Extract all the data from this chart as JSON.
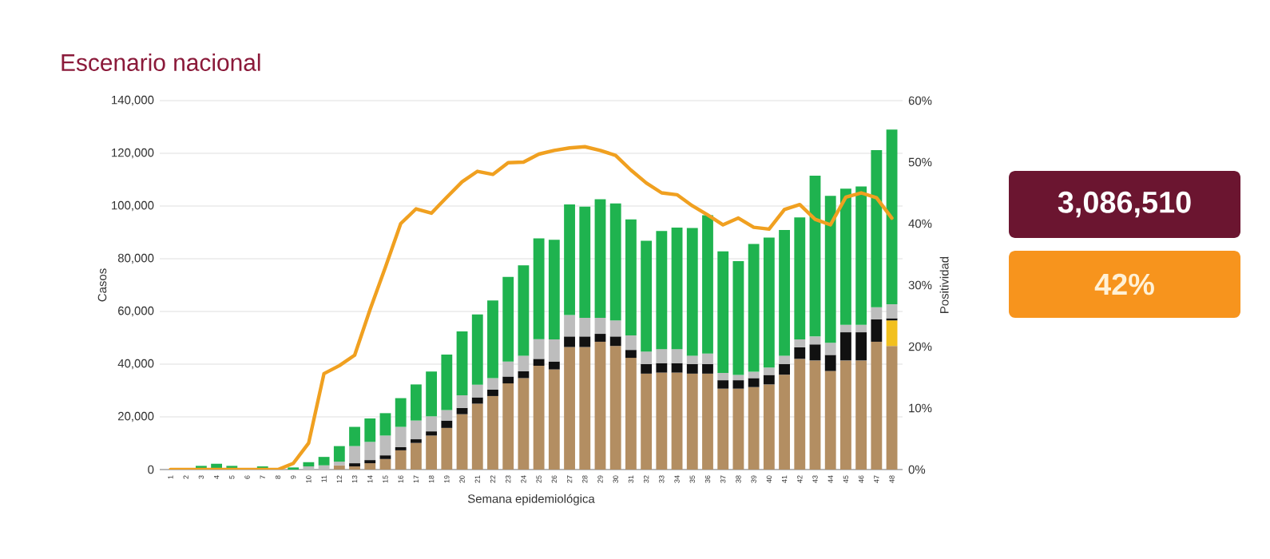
{
  "chart_data": [
    {
      "type": "bar",
      "stacked": true,
      "title": "Escenario nacional",
      "xlabel": "Semana epidemiológica",
      "ylabel": "Casos",
      "y2label": "Positividad",
      "grid": "y",
      "categories": [
        "1",
        "2",
        "3",
        "4",
        "5",
        "6",
        "7",
        "8",
        "9",
        "10",
        "11",
        "12",
        "13",
        "14",
        "15",
        "16",
        "17",
        "18",
        "19",
        "20",
        "21",
        "22",
        "23",
        "24",
        "25",
        "26",
        "27",
        "28",
        "29",
        "30",
        "31",
        "32",
        "33",
        "34",
        "35",
        "36",
        "37",
        "38",
        "39",
        "40",
        "41",
        "42",
        "43",
        "44",
        "45",
        "46",
        "47",
        "48"
      ],
      "ylim": [
        0,
        140000
      ],
      "yticks": [
        {
          "value": 0,
          "label": "0"
        },
        {
          "value": 20000,
          "label": "20,000"
        },
        {
          "value": 40000,
          "label": "40,000"
        },
        {
          "value": 60000,
          "label": "60,000"
        },
        {
          "value": 80000,
          "label": "80,000"
        },
        {
          "value": 100000,
          "label": "100,000"
        },
        {
          "value": 120000,
          "label": "120,000"
        },
        {
          "value": 140000,
          "label": "140,000"
        }
      ],
      "y2lim": [
        0,
        60
      ],
      "y2ticks": [
        {
          "value": 0,
          "label": "0%"
        },
        {
          "value": 10,
          "label": "10%"
        },
        {
          "value": 20,
          "label": "20%"
        },
        {
          "value": 30,
          "label": "30%"
        },
        {
          "value": 40,
          "label": "40%"
        },
        {
          "value": 50,
          "label": "50%"
        },
        {
          "value": 60,
          "label": "60%"
        }
      ],
      "series": [
        {
          "color": "#b38e62",
          "values": [
            null,
            null,
            null,
            null,
            null,
            null,
            null,
            null,
            null,
            null,
            null,
            1600,
            1200,
            2400,
            4000,
            7300,
            10100,
            12900,
            15800,
            21000,
            25000,
            27900,
            32700,
            34700,
            39400,
            38000,
            46500,
            46500,
            48500,
            46900,
            42400,
            36400,
            36800,
            36800,
            36400,
            36400,
            30700,
            30700,
            31300,
            32300,
            36000,
            42000,
            41400,
            37400,
            41400,
            41400,
            48500,
            46900
          ]
        },
        {
          "color": "#f2c01e",
          "values": [
            null,
            null,
            null,
            null,
            null,
            null,
            null,
            null,
            null,
            null,
            null,
            null,
            null,
            null,
            null,
            null,
            null,
            null,
            null,
            null,
            null,
            null,
            null,
            null,
            null,
            null,
            null,
            null,
            null,
            null,
            null,
            null,
            null,
            null,
            null,
            null,
            null,
            null,
            null,
            null,
            null,
            null,
            null,
            null,
            null,
            null,
            null,
            9700
          ]
        },
        {
          "color": "#111111",
          "values": [
            null,
            null,
            null,
            null,
            null,
            null,
            null,
            null,
            null,
            null,
            null,
            null,
            1200,
            1200,
            1400,
            1200,
            1400,
            1600,
            2800,
            2400,
            2400,
            2400,
            2600,
            2600,
            2600,
            3000,
            4000,
            4000,
            3000,
            3600,
            3000,
            3600,
            3600,
            3600,
            3600,
            3600,
            3200,
            3200,
            3400,
            3600,
            4000,
            4400,
            6100,
            6100,
            10700,
            10700,
            8500,
            800
          ]
        },
        {
          "color": "#bdbdbd",
          "values": [
            null,
            null,
            null,
            null,
            null,
            null,
            null,
            null,
            null,
            1200,
            1600,
            1400,
            6500,
            6900,
            7500,
            7700,
            7100,
            5700,
            4000,
            4800,
            4800,
            4400,
            5700,
            5900,
            7500,
            8400,
            8100,
            7100,
            6100,
            6100,
            5500,
            4800,
            5300,
            5300,
            3200,
            4000,
            2800,
            2000,
            2400,
            2800,
            3200,
            3000,
            3000,
            4600,
            2800,
            2800,
            4600,
            5300
          ]
        },
        {
          "color": "#1fb34f",
          "values": [
            null,
            null,
            1400,
            2200,
            1400,
            null,
            1200,
            null,
            800,
            1600,
            3200,
            5900,
            7300,
            8900,
            8500,
            10900,
            13700,
            17000,
            21000,
            24200,
            26700,
            29500,
            32100,
            34300,
            38200,
            37800,
            42000,
            42200,
            45000,
            44400,
            44000,
            42000,
            44800,
            46100,
            48500,
            52500,
            46100,
            43200,
            48500,
            49300,
            47700,
            46300,
            61000,
            55800,
            51700,
            52500,
            59600,
            66300
          ]
        },
        {
          "type": "line",
          "axis": "y2",
          "color": "#f0a020",
          "values": [
            0,
            0,
            0,
            0,
            0,
            0,
            0,
            0,
            1,
            4.3,
            15.6,
            16.9,
            18.6,
            26,
            32.9,
            40,
            42.4,
            41.7,
            44.3,
            46.8,
            48.5,
            48,
            49.9,
            50,
            51.3,
            51.9,
            52.3,
            52.5,
            51.9,
            51.1,
            48.7,
            46.6,
            45,
            44.7,
            42.9,
            41.4,
            39.8,
            40.9,
            39.4,
            39.1,
            42.3,
            43.1,
            40.7,
            39.8,
            44.3,
            45,
            44.2,
            40.9
          ]
        }
      ]
    },
    {
      "type": "other",
      "annotations": [
        "3,086,510",
        "42%"
      ],
      "colors": [
        "#6b1530",
        "#f7941d"
      ]
    }
  ]
}
